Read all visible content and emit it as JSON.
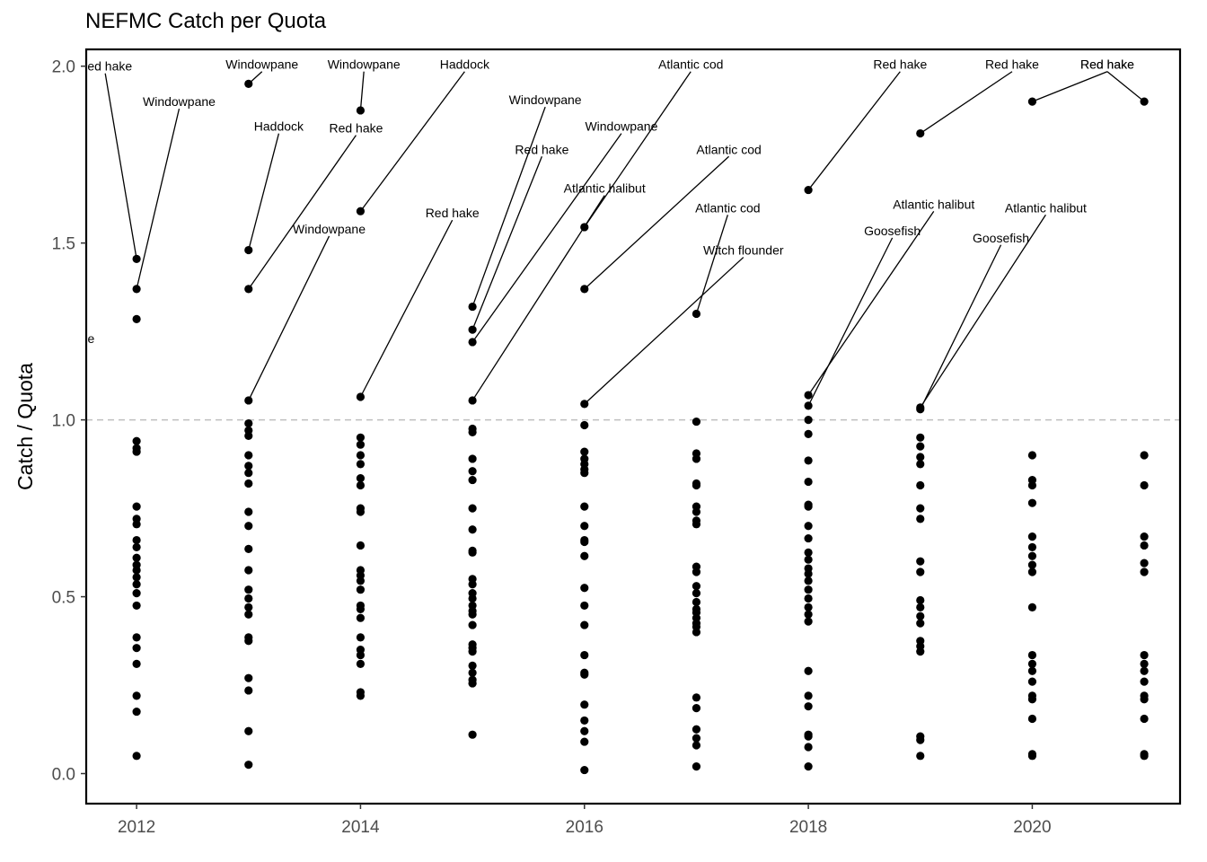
{
  "chart_data": {
    "type": "scatter",
    "title": "NEFMC Catch per Quota",
    "xlabel": "",
    "ylabel": "Catch / Quota",
    "xlim": [
      2011.55,
      2021.32
    ],
    "ylim": [
      -0.085,
      2.0475
    ],
    "x_ticks": [
      2012,
      2014,
      2016,
      2018,
      2020
    ],
    "y_ticks": [
      0.0,
      0.5,
      1.0,
      1.5,
      2.0
    ],
    "y_tick_labels": [
      "0.0",
      "0.5",
      "1.0",
      "1.5",
      "2.0"
    ],
    "reference_line": {
      "y": 1.0,
      "style": "dashed",
      "color": "#bfbfbf"
    },
    "point_color": "#000000",
    "grid": false,
    "legend": "none",
    "points": [
      {
        "year": 2012,
        "values": [
          1.455,
          1.37,
          1.285,
          0.94,
          0.92,
          0.91,
          0.755,
          0.72,
          0.705,
          0.66,
          0.64,
          0.61,
          0.59,
          0.575,
          0.555,
          0.535,
          0.51,
          0.475,
          0.385,
          0.355,
          0.31,
          0.22,
          0.175,
          0.05
        ]
      },
      {
        "year": 2013,
        "values": [
          1.95,
          1.48,
          1.37,
          1.055,
          0.99,
          0.97,
          0.955,
          0.9,
          0.87,
          0.85,
          0.82,
          0.74,
          0.7,
          0.635,
          0.575,
          0.52,
          0.495,
          0.47,
          0.45,
          0.385,
          0.375,
          0.27,
          0.235,
          0.12,
          0.025
        ]
      },
      {
        "year": 2014,
        "values": [
          1.875,
          1.59,
          1.065,
          0.95,
          0.93,
          0.9,
          0.875,
          0.835,
          0.815,
          0.75,
          0.74,
          0.645,
          0.575,
          0.56,
          0.545,
          0.52,
          0.475,
          0.465,
          0.44,
          0.385,
          0.35,
          0.335,
          0.31,
          0.23,
          0.22
        ]
      },
      {
        "year": 2015,
        "values": [
          1.32,
          1.255,
          1.22,
          1.055,
          0.975,
          0.965,
          0.89,
          0.855,
          0.83,
          0.75,
          0.69,
          0.63,
          0.625,
          0.55,
          0.535,
          0.51,
          0.495,
          0.475,
          0.46,
          0.45,
          0.42,
          0.365,
          0.355,
          0.345,
          0.305,
          0.285,
          0.265,
          0.255,
          0.11
        ]
      },
      {
        "year": 2016,
        "values": [
          1.545,
          1.37,
          1.045,
          0.985,
          0.91,
          0.89,
          0.875,
          0.86,
          0.85,
          0.755,
          0.7,
          0.66,
          0.655,
          0.615,
          0.525,
          0.475,
          0.42,
          0.335,
          0.285,
          0.28,
          0.195,
          0.15,
          0.12,
          0.09,
          0.01
        ]
      },
      {
        "year": 2017,
        "values": [
          1.3,
          0.995,
          0.905,
          0.89,
          0.82,
          0.815,
          0.755,
          0.74,
          0.715,
          0.705,
          0.585,
          0.57,
          0.53,
          0.51,
          0.485,
          0.465,
          0.455,
          0.44,
          0.425,
          0.415,
          0.4,
          0.215,
          0.185,
          0.125,
          0.1,
          0.08,
          0.02
        ]
      },
      {
        "year": 2018,
        "values": [
          1.65,
          1.07,
          1.04,
          1.0,
          0.96,
          0.885,
          0.825,
          0.76,
          0.755,
          0.7,
          0.665,
          0.625,
          0.605,
          0.58,
          0.565,
          0.545,
          0.52,
          0.495,
          0.47,
          0.45,
          0.43,
          0.29,
          0.22,
          0.19,
          0.11,
          0.105,
          0.075,
          0.02
        ]
      },
      {
        "year": 2019,
        "values": [
          1.81,
          1.035,
          1.03,
          0.95,
          0.925,
          0.895,
          0.875,
          0.815,
          0.75,
          0.72,
          0.6,
          0.57,
          0.49,
          0.47,
          0.445,
          0.425,
          0.375,
          0.36,
          0.345,
          0.105,
          0.095,
          0.05
        ]
      },
      {
        "year": 2020,
        "values": [
          1.9,
          0.9,
          0.83,
          0.815,
          0.765,
          0.67,
          0.64,
          0.615,
          0.59,
          0.57,
          0.47,
          0.335,
          0.31,
          0.29,
          0.26,
          0.22,
          0.21,
          0.155,
          0.055,
          0.05
        ]
      },
      {
        "year": 2021,
        "values": [
          1.9,
          0.9,
          0.815,
          0.67,
          0.645,
          0.595,
          0.57,
          0.335,
          0.31,
          0.29,
          0.26,
          0.22,
          0.21,
          0.155,
          0.055,
          0.05
        ]
      }
    ],
    "annotations": [
      {
        "label": "Red hake",
        "point": [
          2012,
          1.455
        ],
        "label_pos": [
          2011.72,
          2.0
        ]
      },
      {
        "label": "Windowpane",
        "point": [
          2012,
          1.37
        ],
        "label_pos": [
          2012.38,
          1.9
        ]
      },
      {
        "label": "Windowpane",
        "point": [
          2011.3,
          1.23
        ],
        "label_pos": [
          2011.3,
          1.23
        ]
      },
      {
        "label": "Windowpane",
        "point": [
          2013,
          1.95
        ],
        "label_pos": [
          2013.12,
          2.005
        ]
      },
      {
        "label": "Haddock",
        "point": [
          2013,
          1.48
        ],
        "label_pos": [
          2013.27,
          1.83
        ]
      },
      {
        "label": "Red hake",
        "point": [
          2013,
          1.37
        ],
        "label_pos": [
          2013.96,
          1.825
        ]
      },
      {
        "label": "Windowpane",
        "point": [
          2013,
          1.055
        ],
        "label_pos": [
          2013.72,
          1.54
        ]
      },
      {
        "label": "Windowpane",
        "point": [
          2014,
          1.875
        ],
        "label_pos": [
          2014.03,
          2.005
        ]
      },
      {
        "label": "Haddock",
        "point": [
          2014,
          1.59
        ],
        "label_pos": [
          2014.93,
          2.005
        ]
      },
      {
        "label": "Red hake",
        "point": [
          2014,
          1.065
        ],
        "label_pos": [
          2014.82,
          1.585
        ]
      },
      {
        "label": "Windowpane",
        "point": [
          2015,
          1.32
        ],
        "label_pos": [
          2015.65,
          1.905
        ]
      },
      {
        "label": "Red hake",
        "point": [
          2015,
          1.255
        ],
        "label_pos": [
          2015.62,
          1.765
        ]
      },
      {
        "label": "Windowpane",
        "point": [
          2015,
          1.22
        ],
        "label_pos": [
          2016.33,
          1.83
        ]
      },
      {
        "label": "Atlantic halibut",
        "point": [
          2015,
          1.055
        ],
        "label_pos": [
          2016.18,
          1.655
        ]
      },
      {
        "label": "Atlantic cod",
        "point": [
          2016,
          1.545
        ],
        "label_pos": [
          2016.95,
          2.005
        ]
      },
      {
        "label": "Atlantic cod",
        "point": [
          2016,
          1.37
        ],
        "label_pos": [
          2017.29,
          1.765
        ]
      },
      {
        "label": "Witch flounder",
        "point": [
          2016,
          1.045
        ],
        "label_pos": [
          2017.42,
          1.48
        ]
      },
      {
        "label": "Atlantic cod",
        "point": [
          2017,
          1.3
        ],
        "label_pos": [
          2017.28,
          1.6
        ]
      },
      {
        "label": "Red hake",
        "point": [
          2018,
          1.65
        ],
        "label_pos": [
          2018.82,
          2.005
        ]
      },
      {
        "label": "Atlantic halibut",
        "point": [
          2018,
          1.07
        ],
        "label_pos": [
          2019.12,
          1.61
        ]
      },
      {
        "label": "Goosefish",
        "point": [
          2018,
          1.04
        ],
        "label_pos": [
          2018.75,
          1.535
        ]
      },
      {
        "label": "Red hake",
        "point": [
          2019,
          1.81
        ],
        "label_pos": [
          2019.82,
          2.005
        ]
      },
      {
        "label": "Atlantic halibut",
        "point": [
          2019,
          1.035
        ],
        "label_pos": [
          2020.12,
          1.6
        ]
      },
      {
        "label": "Goosefish",
        "point": [
          2019,
          1.03
        ],
        "label_pos": [
          2019.72,
          1.515
        ]
      },
      {
        "label": "Red hake",
        "point": [
          2020,
          1.9
        ],
        "label_pos": [
          2020.67,
          2.005
        ]
      },
      {
        "label": "Red hake",
        "point": [
          2021,
          1.9
        ],
        "label_pos": [
          2020.67,
          2.005
        ]
      }
    ]
  }
}
